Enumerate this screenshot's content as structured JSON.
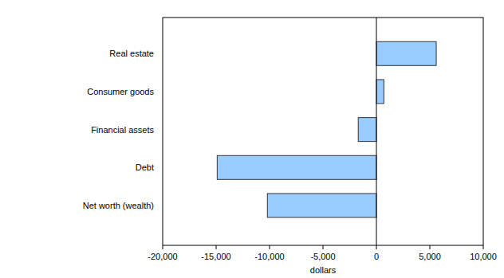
{
  "chart_data": {
    "type": "bar",
    "orientation": "horizontal",
    "categories": [
      "Real estate",
      "Consumer goods",
      "Financial assets",
      "Debt",
      "Net worth (wealth)"
    ],
    "values": [
      5600,
      700,
      -1700,
      -14900,
      -10200
    ],
    "color": "#99ccff",
    "x_label": "dollars",
    "xlim": [
      -20000,
      10000
    ],
    "xticks": [
      {
        "value": -20000,
        "label": "-20,000"
      },
      {
        "value": -15000,
        "label": "-15,000"
      },
      {
        "value": -10000,
        "label": "-10,000"
      },
      {
        "value": -5000,
        "label": "-5,000"
      },
      0,
      {
        "value": 5000,
        "label": "5,000"
      },
      {
        "value": 10000,
        "label": "10,000"
      }
    ],
    "grid": false
  }
}
